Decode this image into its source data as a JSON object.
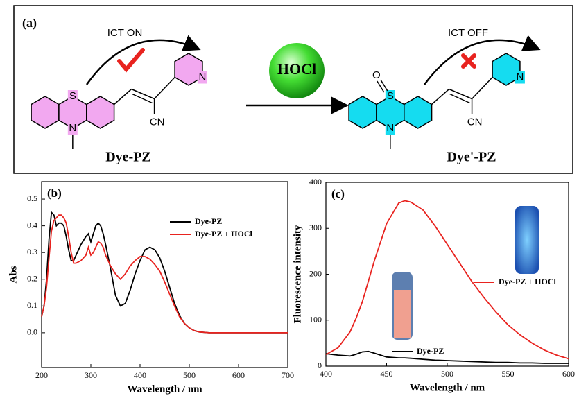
{
  "scheme": {
    "label": "(a)",
    "reagent": "HOCl",
    "left": {
      "ict": "ICT ON",
      "name": "Dye-PZ",
      "atoms": [
        "S",
        "N",
        "N",
        "CN"
      ]
    },
    "right": {
      "ict": "ICT OFF",
      "name": "Dye'-PZ",
      "atoms": [
        "S",
        "O",
        "N",
        "N",
        "CN"
      ]
    }
  },
  "chart_data": [
    {
      "type": "line",
      "panel_label": "(b)",
      "xlabel": "Wavelength / nm",
      "ylabel": "Abs",
      "x": [
        200,
        205,
        210,
        215,
        220,
        225,
        230,
        235,
        240,
        245,
        250,
        255,
        260,
        265,
        270,
        280,
        290,
        295,
        300,
        305,
        310,
        315,
        320,
        325,
        330,
        340,
        350,
        360,
        370,
        380,
        390,
        400,
        410,
        420,
        430,
        440,
        450,
        460,
        470,
        480,
        490,
        500,
        510,
        520,
        540,
        560,
        600,
        650,
        700
      ],
      "xlim": [
        200,
        700
      ],
      "xticks": [
        200,
        300,
        400,
        500,
        600,
        700
      ],
      "ylim": [
        -0.13,
        0.565
      ],
      "yticks": [
        {
          "value": 0,
          "label": "0.0"
        },
        0.1,
        0.2,
        0.3,
        0.4,
        0.5
      ],
      "legend": "upper right",
      "series": [
        {
          "name": "Dye-PZ",
          "color": "#000000",
          "values": [
            0.06,
            0.1,
            0.2,
            0.35,
            0.45,
            0.44,
            0.4,
            0.41,
            0.41,
            0.4,
            0.36,
            0.31,
            0.27,
            0.27,
            0.29,
            0.33,
            0.36,
            0.37,
            0.34,
            0.37,
            0.4,
            0.41,
            0.4,
            0.37,
            0.33,
            0.24,
            0.14,
            0.1,
            0.11,
            0.16,
            0.22,
            0.27,
            0.31,
            0.32,
            0.31,
            0.28,
            0.23,
            0.17,
            0.11,
            0.065,
            0.035,
            0.018,
            0.008,
            0.003,
            0,
            0,
            0,
            0,
            0
          ]
        },
        {
          "name": "Dye-PZ + HOCl",
          "color": "#e8231f",
          "values": [
            0.06,
            0.1,
            0.17,
            0.28,
            0.38,
            0.42,
            0.43,
            0.44,
            0.44,
            0.43,
            0.41,
            0.36,
            0.3,
            0.26,
            0.26,
            0.27,
            0.29,
            0.32,
            0.29,
            0.3,
            0.32,
            0.34,
            0.335,
            0.32,
            0.29,
            0.25,
            0.22,
            0.2,
            0.22,
            0.25,
            0.27,
            0.285,
            0.285,
            0.275,
            0.255,
            0.23,
            0.19,
            0.145,
            0.1,
            0.06,
            0.035,
            0.018,
            0.008,
            0.003,
            0,
            0,
            0,
            0,
            0
          ]
        }
      ]
    },
    {
      "type": "line",
      "panel_label": "(c)",
      "xlabel": "Wavelength / nm",
      "ylabel": "Fluorescence intensity",
      "x": [
        400,
        410,
        420,
        425,
        430,
        435,
        440,
        450,
        460,
        465,
        470,
        480,
        490,
        500,
        510,
        520,
        530,
        540,
        550,
        560,
        570,
        580,
        590,
        600
      ],
      "xlim": [
        400,
        600
      ],
      "xticks": [
        400,
        450,
        500,
        550,
        600
      ],
      "ylim": [
        0,
        400
      ],
      "yticks": [
        0,
        100,
        200,
        300,
        400
      ],
      "series": [
        {
          "name": "Dye-PZ",
          "color": "#000000",
          "values": [
            27,
            24,
            22,
            26,
            31,
            32,
            28,
            20,
            18,
            18,
            17,
            15,
            13,
            12,
            11,
            10,
            9,
            8,
            8,
            7,
            7,
            6,
            6,
            6
          ]
        },
        {
          "name": "Dye-PZ + HOCl",
          "color": "#e8231f",
          "values": [
            25,
            40,
            75,
            105,
            140,
            185,
            230,
            310,
            355,
            360,
            357,
            340,
            305,
            265,
            225,
            185,
            150,
            118,
            90,
            68,
            50,
            35,
            24,
            16
          ]
        }
      ]
    }
  ]
}
